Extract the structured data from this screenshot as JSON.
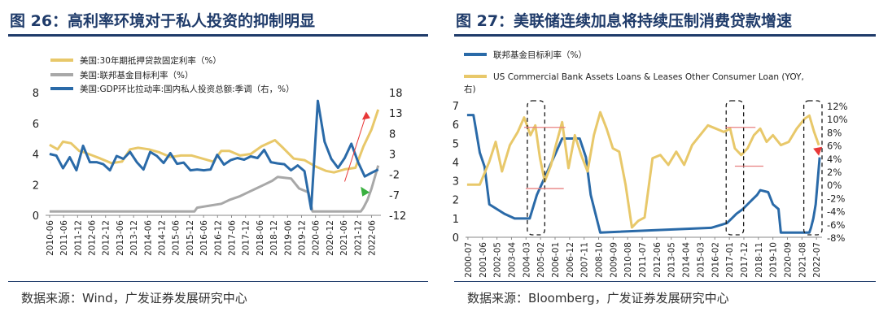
{
  "left": {
    "title": "图 26：高利率环境对于私人投资的抑制明显",
    "source": "数据来源：Wind，广发证券发展研究中心",
    "colors": {
      "mortgage": "#e8c86a",
      "fedfunds": "#a8a8a8",
      "gdp": "#2a6aa8",
      "arrow_up": "#e83838",
      "arrow_down": "#3ab040"
    },
    "chart_data": {
      "type": "line",
      "legend": [
        "美国:30年期抵押贷款固定利率（%）",
        "美国:联邦基金目标利率（%）",
        "美国:GDP环比拉动率:国内私人投资总额:季调（右，%）"
      ],
      "legend_position": "top-left",
      "left_axis": {
        "min": 0,
        "max": 8,
        "ticks": [
          "0",
          "2",
          "4",
          "6",
          "8"
        ]
      },
      "right_axis": {
        "min": -12,
        "max": 18,
        "ticks": [
          "-12",
          "-7",
          "-2",
          "3",
          "8",
          "13",
          "18"
        ]
      },
      "x_labels": [
        "2010-06",
        "2011-06",
        "2011-12",
        "2012-06",
        "2012-12",
        "2013-06",
        "2013-12",
        "2014-06",
        "2014-12",
        "2015-06",
        "2015-12",
        "2016-06",
        "2016-12",
        "2017-06",
        "2017-12",
        "2018-06",
        "2018-12",
        "2019-06",
        "2019-12",
        "2020-06",
        "2020-12",
        "2021-06",
        "2021-12",
        "2022-06"
      ],
      "series": [
        {
          "name": "美国:30年期抵押贷款固定利率（%）",
          "axis": "left",
          "x": [
            2010.5,
            2010.8,
            2011.0,
            2011.3,
            2011.6,
            2011.8,
            2012.1,
            2012.4,
            2012.8,
            2013.2,
            2013.5,
            2013.8,
            2014.2,
            2014.6,
            2015.0,
            2015.4,
            2015.8,
            2016.2,
            2016.6,
            2016.9,
            2017.2,
            2017.6,
            2018.0,
            2018.4,
            2018.9,
            2019.2,
            2019.6,
            2020.0,
            2020.4,
            2020.8,
            2021.1,
            2021.5,
            2021.9,
            2022.2,
            2022.5,
            2022.75
          ],
          "y": [
            4.6,
            4.3,
            4.8,
            4.7,
            4.2,
            4.1,
            3.9,
            3.7,
            3.4,
            3.5,
            4.3,
            4.4,
            4.3,
            4.1,
            3.8,
            3.9,
            3.9,
            3.7,
            3.5,
            4.2,
            4.2,
            3.9,
            4.0,
            4.5,
            4.9,
            4.4,
            3.7,
            3.6,
            3.2,
            2.9,
            2.8,
            3.0,
            3.1,
            4.5,
            5.6,
            6.9
          ]
        },
        {
          "name": "美国:联邦基金目标利率（%）",
          "axis": "left",
          "x": [
            2010.5,
            2015.9,
            2016.0,
            2016.9,
            2017.2,
            2017.6,
            2017.9,
            2018.2,
            2018.5,
            2018.8,
            2019.0,
            2019.5,
            2019.8,
            2020.15,
            2020.3,
            2022.1,
            2022.2,
            2022.35,
            2022.5,
            2022.75
          ],
          "y": [
            0.25,
            0.25,
            0.5,
            0.75,
            1.0,
            1.25,
            1.5,
            1.75,
            2.0,
            2.25,
            2.5,
            2.4,
            1.75,
            1.5,
            0.25,
            0.25,
            0.5,
            1.0,
            1.75,
            3.25
          ]
        },
        {
          "name": "美国:GDP环比拉动率:国内私人投资总额:季调（右，%）",
          "axis": "right",
          "x": [
            2010.5,
            2010.75,
            2011.0,
            2011.25,
            2011.5,
            2011.75,
            2012.0,
            2012.25,
            2012.5,
            2012.75,
            2013.0,
            2013.25,
            2013.5,
            2013.75,
            2014.0,
            2014.25,
            2014.5,
            2014.75,
            2015.0,
            2015.25,
            2015.5,
            2015.75,
            2016.0,
            2016.25,
            2016.5,
            2016.75,
            2017.0,
            2017.25,
            2017.5,
            2017.75,
            2018.0,
            2018.25,
            2018.5,
            2018.75,
            2019.0,
            2019.25,
            2019.5,
            2019.75,
            2020.0,
            2020.25,
            2020.5,
            2020.75,
            2021.0,
            2021.25,
            2021.5,
            2021.75,
            2022.0,
            2022.25,
            2022.5,
            2022.75
          ],
          "y": [
            3.0,
            2.6,
            -0.5,
            2.2,
            -1.0,
            5.0,
            1.0,
            1.0,
            0.5,
            -1.0,
            2.5,
            1.8,
            3.5,
            1.0,
            -0.8,
            3.5,
            2.5,
            0.8,
            3.2,
            0.6,
            0.9,
            -1.0,
            -0.8,
            -1.0,
            -0.8,
            2.8,
            0.4,
            1.5,
            2.0,
            1.6,
            2.4,
            2.0,
            4.0,
            1.0,
            0.7,
            0.5,
            -1.0,
            0.2,
            -1.2,
            -10.5,
            16.0,
            6.0,
            1.8,
            -0.4,
            2.0,
            5.5,
            1.0,
            -2.5,
            -1.6,
            -0.8
          ]
        }
      ]
    }
  },
  "right": {
    "title": "图 27：美联储连续加息将持续压制消费贷款增速",
    "source": "数据来源：Bloomberg，广发证券发展研究中心",
    "colors": {
      "fedfunds": "#2a6aa8",
      "consumer_loans": "#e8c86a",
      "guide": "#e88080",
      "box": "#1a1a1a",
      "arrow": "#e83838"
    },
    "chart_data": {
      "type": "line",
      "legend": [
        "联邦基金目标利率（%）",
        "US Commercial Bank Assets Loans & Leases Other Consumer Loan (YOY, 右)"
      ],
      "legend_position": "top-left",
      "left_axis": {
        "min": 0,
        "max": 7,
        "ticks": [
          "0",
          "1",
          "2",
          "3",
          "4",
          "5",
          "6",
          "7"
        ]
      },
      "right_axis": {
        "min": -8,
        "max": 12,
        "ticks": [
          "-8%",
          "-6%",
          "-4%",
          "-2%",
          "0%",
          "2%",
          "4%",
          "6%",
          "8%",
          "10%",
          "12%"
        ]
      },
      "x_labels": [
        "2000-07",
        "2001-06",
        "2002-05",
        "2003-04",
        "2004-03",
        "2005-02",
        "2006-01",
        "2006-12",
        "2007-11",
        "2008-10",
        "2009-09",
        "2010-08",
        "2011-07",
        "2012-06",
        "2013-05",
        "2014-04",
        "2015-03",
        "2016-02",
        "2017-01",
        "2017-12",
        "2018-11",
        "2019-10",
        "2020-09",
        "2021-08",
        "2022-07"
      ],
      "series": [
        {
          "name": "联邦基金目标利率（%）",
          "axis": "left",
          "x": [
            2000.5,
            2000.9,
            2001.0,
            2001.3,
            2001.6,
            2001.9,
            2002.85,
            2003.5,
            2004.45,
            2004.9,
            2005.3,
            2005.7,
            2006.1,
            2006.5,
            2007.6,
            2007.8,
            2008.0,
            2008.3,
            2008.9,
            2015.9,
            2016.9,
            2017.2,
            2017.5,
            2017.9,
            2018.2,
            2018.5,
            2018.8,
            2019.0,
            2019.5,
            2019.8,
            2020.15,
            2020.3,
            2022.1,
            2022.2,
            2022.35,
            2022.5,
            2022.75
          ],
          "y": [
            6.5,
            6.5,
            6.0,
            4.5,
            3.75,
            1.75,
            1.25,
            1.0,
            1.0,
            2.25,
            3.0,
            3.75,
            4.5,
            5.25,
            5.25,
            4.75,
            4.25,
            2.25,
            0.25,
            0.5,
            0.75,
            1.0,
            1.25,
            1.5,
            1.75,
            2.0,
            2.25,
            2.5,
            2.4,
            1.75,
            1.5,
            0.25,
            0.25,
            0.5,
            1.0,
            1.75,
            4.25
          ]
        },
        {
          "name": "US Commercial Bank Assets Loans & Leases Other Consumer Loan (YOY, 右)",
          "axis": "right",
          "x": [
            2000.5,
            2001.3,
            2001.9,
            2002.3,
            2002.7,
            2003.2,
            2003.7,
            2004.1,
            2004.5,
            2004.8,
            2005.1,
            2005.4,
            2005.8,
            2006.1,
            2006.5,
            2006.9,
            2007.3,
            2007.7,
            2008.1,
            2008.5,
            2008.9,
            2009.3,
            2009.7,
            2010.1,
            2010.5,
            2010.9,
            2011.3,
            2011.7,
            2012.2,
            2012.7,
            2013.2,
            2013.7,
            2014.2,
            2014.7,
            2015.2,
            2015.7,
            2016.2,
            2016.7,
            2017.1,
            2017.4,
            2017.8,
            2018.2,
            2018.6,
            2019.0,
            2019.4,
            2019.8,
            2020.3,
            2020.8,
            2021.3,
            2021.8,
            2022.1,
            2022.4,
            2022.7
          ],
          "y": [
            0.0,
            0.0,
            3.5,
            6.5,
            2.0,
            6.0,
            8.0,
            10.2,
            7.5,
            9.0,
            4.0,
            0.5,
            3.0,
            6.0,
            9.5,
            2.5,
            7.5,
            4.5,
            2.0,
            7.5,
            11.0,
            8.5,
            5.5,
            5.0,
            0.0,
            -6.5,
            -5.5,
            -5.0,
            4.0,
            4.5,
            3.0,
            5.0,
            3.0,
            6.0,
            7.5,
            9.0,
            8.5,
            8.0,
            8.5,
            5.5,
            4.5,
            5.5,
            7.5,
            8.5,
            6.5,
            7.5,
            6.0,
            6.5,
            8.5,
            10.0,
            10.5,
            8.0,
            6.0
          ]
        }
      ]
    }
  }
}
